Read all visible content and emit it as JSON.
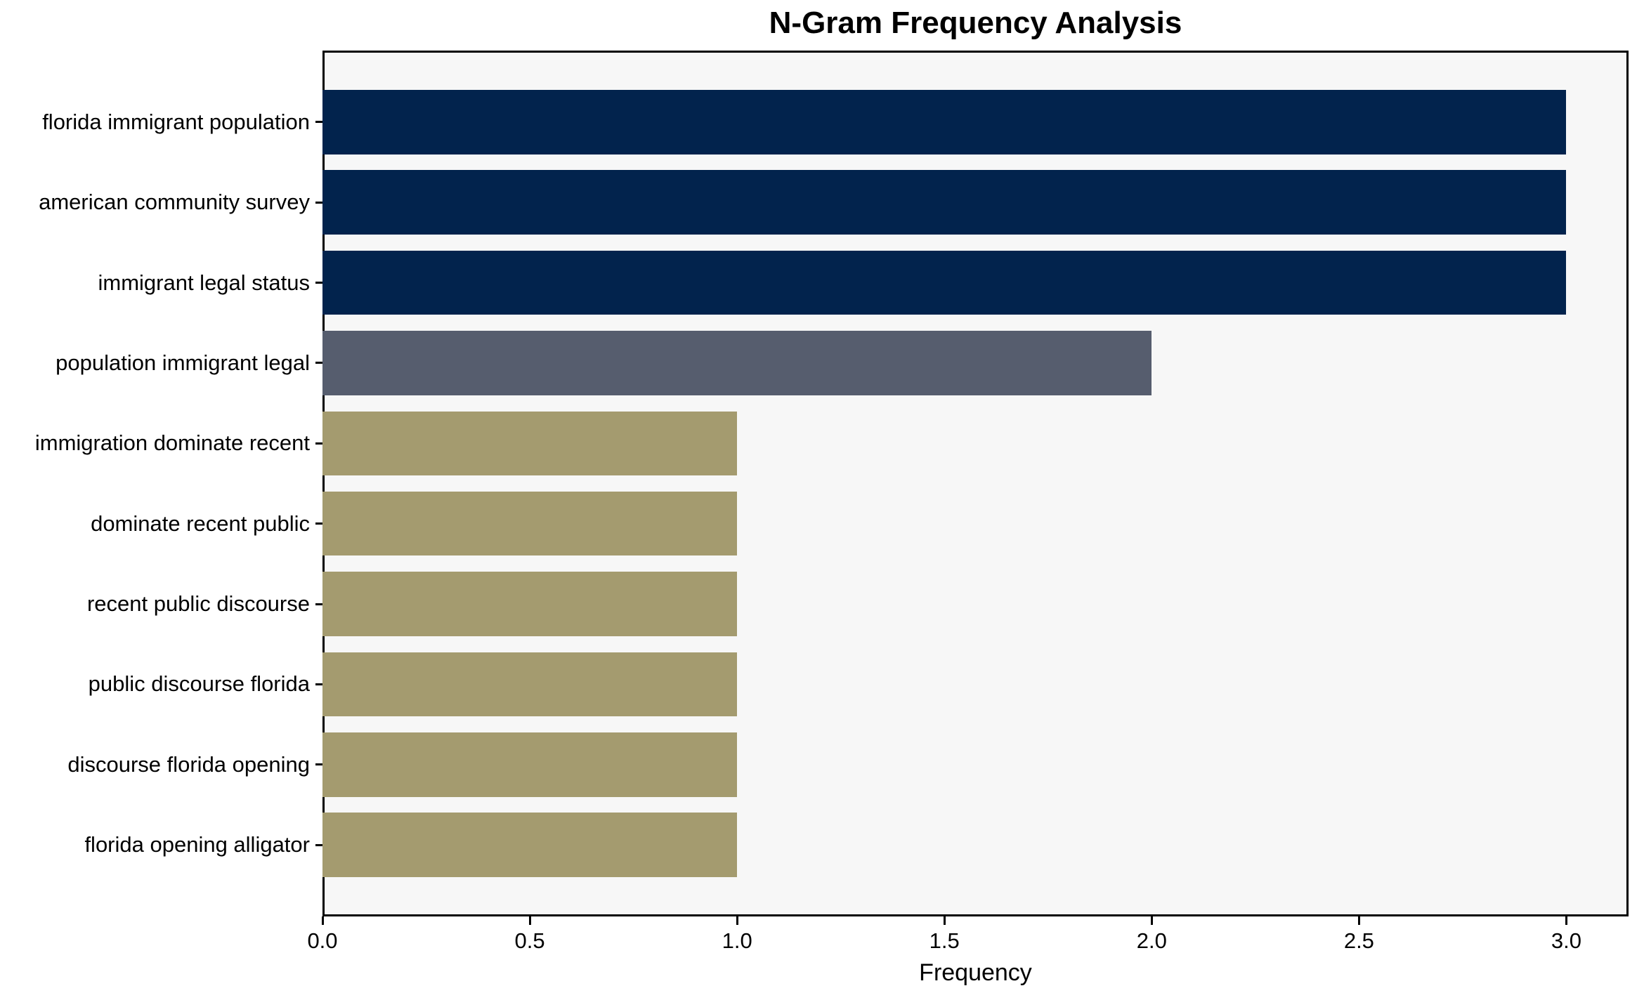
{
  "chart_data": {
    "type": "bar",
    "orientation": "horizontal",
    "title": "N-Gram Frequency Analysis",
    "xlabel": "Frequency",
    "ylabel": "",
    "categories": [
      "florida immigrant population",
      "american community survey",
      "immigrant legal status",
      "population immigrant legal",
      "immigration dominate recent",
      "dominate recent public",
      "recent public discourse",
      "public discourse florida",
      "discourse florida opening",
      "florida opening alligator"
    ],
    "values": [
      3,
      3,
      3,
      2,
      1,
      1,
      1,
      1,
      1,
      1
    ],
    "bar_colors": [
      "#02234d",
      "#02234d",
      "#02234d",
      "#565d6e",
      "#a49b6f",
      "#a49b6f",
      "#a49b6f",
      "#a49b6f",
      "#a49b6f",
      "#a49b6f"
    ],
    "xlim": [
      0,
      3.15
    ],
    "x_ticks": [
      0.0,
      0.5,
      1.0,
      1.5,
      2.0,
      2.5,
      3.0
    ],
    "x_tick_labels": [
      "0.0",
      "0.5",
      "1.0",
      "1.5",
      "2.0",
      "2.5",
      "3.0"
    ],
    "grid": false,
    "legend": null,
    "colors": {
      "plot_background": "#f7f7f7",
      "figure_background": "#ffffff",
      "spine": "#000000",
      "text": "#000000"
    }
  }
}
